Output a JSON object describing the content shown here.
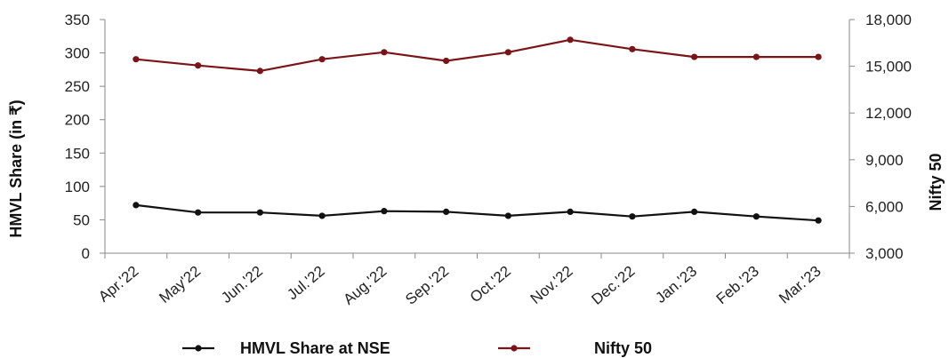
{
  "chart_data": {
    "type": "line",
    "categories": [
      "Apr.'22",
      "May'22",
      "Jun.'22",
      "Jul.'22",
      "Aug.'22",
      "Sep.'22",
      "Oct.'22",
      "Nov.'22",
      "Dec.'22",
      "Jan.'23",
      "Feb.'23",
      "Mar.'23"
    ],
    "series": [
      {
        "name": "HMVL Share at NSE",
        "axis": "left",
        "color": "#111111",
        "values": [
          72,
          61,
          61,
          56,
          63,
          62,
          56,
          62,
          55,
          62,
          55,
          49
        ]
      },
      {
        "name": "Nifty 50",
        "axis": "right",
        "color": "#7b1416",
        "values": [
          15450,
          15050,
          14700,
          15450,
          15900,
          15350,
          15900,
          16700,
          16100,
          15600,
          15600,
          15600
        ]
      }
    ],
    "ylabel": "HMVL Share (in ₹)",
    "y2label": "Nifty 50",
    "ylim": [
      0,
      350
    ],
    "y2lim": [
      3000,
      18000
    ],
    "yticks": [
      "0",
      "50",
      "100",
      "150",
      "200",
      "250",
      "300",
      "350"
    ],
    "y2ticks": [
      "3,000",
      "6,000",
      "9,000",
      "12,000",
      "15,000",
      "18,000"
    ],
    "grid": false,
    "legend_position": "bottom"
  }
}
